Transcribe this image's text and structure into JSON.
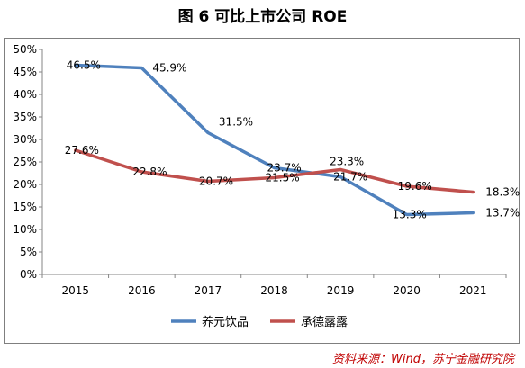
{
  "title": "图 6  可比上市公司 ROE",
  "source": "资料来源：Wind，苏宁金融研究院",
  "chart_data": {
    "type": "line",
    "x": [
      "2015",
      "2016",
      "2017",
      "2018",
      "2019",
      "2020",
      "2021"
    ],
    "ylim": [
      0,
      50
    ],
    "yticks": [
      "0%",
      "5%",
      "10%",
      "15%",
      "20%",
      "25%",
      "30%",
      "35%",
      "40%",
      "45%",
      "50%"
    ],
    "legend_position": "bottom",
    "grid": false,
    "series": [
      {
        "name": "养元饮品",
        "color": "#4f81bd",
        "values": [
          46.5,
          45.9,
          31.5,
          23.7,
          21.7,
          13.3,
          13.7
        ],
        "labels": [
          "46.5%",
          "45.9%",
          "31.5%",
          "23.7%",
          "21.7%",
          "13.3%",
          "13.7%"
        ]
      },
      {
        "name": "承德露露",
        "color": "#c0504d",
        "values": [
          27.6,
          22.8,
          20.7,
          21.5,
          23.3,
          19.6,
          18.3
        ],
        "labels": [
          "27.6%",
          "22.8%",
          "20.7%",
          "21.5%",
          "23.3%",
          "19.6%",
          "18.3%"
        ]
      }
    ]
  }
}
